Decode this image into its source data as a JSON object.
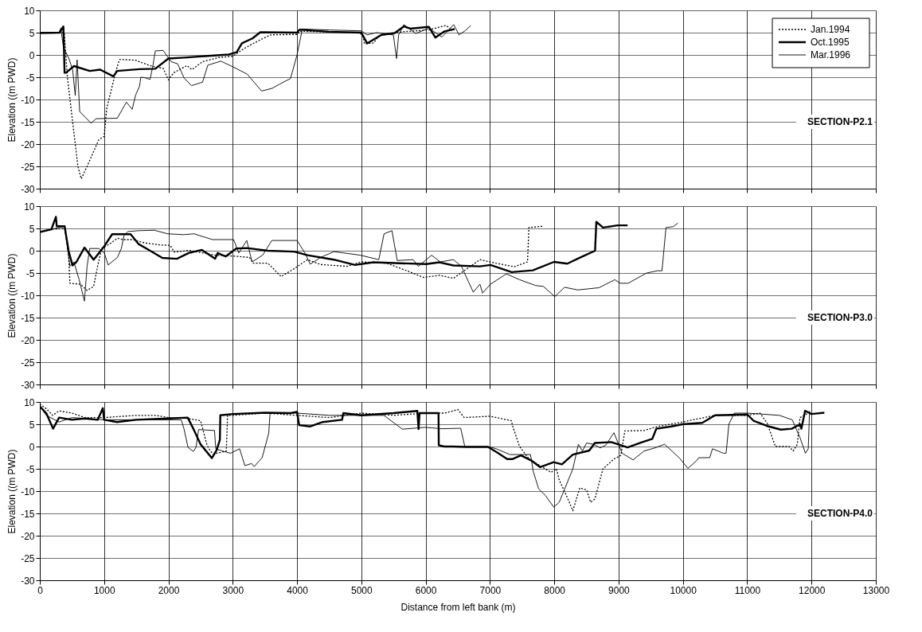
{
  "chart_data": [
    {
      "type": "line",
      "ylabel": "Elevation ((m PWD)",
      "xlim": [
        0,
        13000
      ],
      "ylim": [
        -30,
        10
      ],
      "xticks": [
        0,
        1000,
        2000,
        3000,
        4000,
        5000,
        6000,
        7000,
        8000,
        9000,
        10000,
        11000,
        12000,
        13000
      ],
      "yticks": [
        -30,
        -25,
        -20,
        -15,
        -10,
        -5,
        0,
        5,
        10
      ],
      "grid": true,
      "legend": "top right",
      "tick_labels": "y",
      "annotations": [
        "SECTION-P2.1"
      ],
      "series": [
        {
          "name": "Jan.1994",
          "color": "#000000",
          "line_style": "dotted",
          "x": [
            0,
            300,
            380,
            429,
            510,
            592,
            645,
            735,
            918,
            1000,
            1041,
            1143,
            1216,
            1245,
            1490,
            1694,
            1796,
            1918,
            2000,
            2082,
            2286,
            2367,
            2531,
            2776,
            3000,
            3184,
            3429,
            3592,
            4000,
            4041,
            4980,
            5029,
            5049,
            5192,
            5273,
            5641,
            6049,
            6314,
            6376
          ],
          "values": [
            5,
            5,
            5,
            -5,
            -15,
            -25,
            -27.8,
            -25,
            -19,
            -18.3,
            -12,
            -6,
            -2,
            -1,
            -1.2,
            -2.3,
            -2.7,
            -3,
            -5.6,
            -4,
            -2.4,
            -3.3,
            -1.5,
            -0.6,
            -0.3,
            1.5,
            3.4,
            4.5,
            4.6,
            5.3,
            5,
            4,
            2.5,
            2.7,
            4.3,
            5.2,
            5.6,
            6.6,
            6
          ]
        },
        {
          "name": "Oct.1995",
          "color": "#000000",
          "line_style": "solid",
          "x": [
            0,
            306,
            367,
            385,
            408,
            531,
            776,
            939,
            1143,
            1204,
            1551,
            1796,
            2000,
            2245,
            2939,
            3061,
            3143,
            3306,
            3429,
            4000,
            4041,
            4490,
            5000,
            5090,
            5314,
            5518,
            5661,
            5763,
            6049,
            6151,
            6294,
            6450
          ],
          "values": [
            4.9,
            5,
            6.4,
            -4,
            -4,
            -2.5,
            -3.6,
            -3.3,
            -4.8,
            -3.6,
            -3.2,
            -3.1,
            -0.8,
            -0.6,
            0.1,
            0.6,
            2.6,
            3.7,
            5.1,
            5,
            5.7,
            5.2,
            5,
            2.6,
            4.5,
            4.9,
            6.4,
            5.9,
            6.3,
            3.9,
            5.3,
            5.8
          ]
        },
        {
          "name": "Mar.1996",
          "color": "#000000",
          "line_style": "solid",
          "x": [
            0,
            300,
            327,
            367,
            449,
            510,
            551,
            580,
            620,
            796,
            878,
            1204,
            1347,
            1437,
            1490,
            1551,
            1571,
            1633,
            1714,
            1755,
            1796,
            1918,
            2041,
            2143,
            2245,
            2359,
            2531,
            2612,
            2816,
            3020,
            3224,
            3449,
            3612,
            3735,
            3898,
            4000,
            4082,
            4500,
            5000,
            5090,
            5233,
            5498,
            5547,
            5580,
            5661,
            5845,
            6049,
            6253,
            6437,
            6518,
            6620,
            6702
          ],
          "values": [
            5,
            5,
            6,
            1.7,
            -0.7,
            -3.3,
            -9.1,
            -1.1,
            -12.7,
            -15.3,
            -14.3,
            -14.2,
            -10.6,
            -12.2,
            -9,
            -7,
            -5,
            -5.1,
            -5.5,
            -2.7,
            0.9,
            1,
            -1.5,
            -2,
            -5.2,
            -6.9,
            -6.1,
            -2.3,
            -1.4,
            -2.8,
            -4.3,
            -8.1,
            -7.5,
            -6.5,
            -5.3,
            0,
            5.8,
            5.6,
            5.4,
            4.5,
            5,
            4.5,
            -0.8,
            4.5,
            6.8,
            4.8,
            6,
            4,
            6.8,
            4.5,
            5.5,
            6.6
          ]
        }
      ]
    },
    {
      "type": "line",
      "ylabel": "Elevation ((m PWD)",
      "xlim": [
        0,
        13000
      ],
      "ylim": [
        -30,
        10
      ],
      "xticks": [
        0,
        1000,
        2000,
        3000,
        4000,
        5000,
        6000,
        7000,
        8000,
        9000,
        10000,
        11000,
        12000,
        13000
      ],
      "yticks": [
        -30,
        -25,
        -20,
        -15,
        -10,
        -5,
        0,
        5,
        10
      ],
      "grid": true,
      "tick_labels": "y",
      "annotations": [
        "SECTION-P3.0"
      ],
      "series": [
        {
          "color": "#000000",
          "line_style": "dotted",
          "x": [
            0,
            180,
            386,
            447,
            468,
            632,
            735,
            837,
            899,
            961,
            1084,
            1207,
            1289,
            1450,
            1617,
            1864,
            2028,
            2090,
            2315,
            2726,
            3013,
            3259,
            3321,
            3547,
            3752,
            3957,
            4163,
            4368,
            4778,
            5000,
            5394,
            5764,
            5968,
            6215,
            6432,
            6597,
            6844,
            7091,
            7379,
            7584,
            7605,
            7831
          ],
          "values": [
            4.2,
            4.8,
            5,
            -0.5,
            -7.3,
            -7.5,
            -8.9,
            -8,
            -3.5,
            0.5,
            1.5,
            2.8,
            2.5,
            2.5,
            1.8,
            1.3,
            1.2,
            -0.3,
            0.1,
            -1,
            -1.2,
            -1.5,
            -2.8,
            -2.8,
            -5.8,
            -4,
            -2,
            -3.1,
            -3.5,
            -2.5,
            -2.8,
            -4.8,
            -6,
            -5.5,
            -6.2,
            -4.5,
            -2,
            -2.8,
            -3.6,
            -2.5,
            5.2,
            5.5
          ]
        },
        {
          "color": "#000000",
          "line_style": "solid",
          "x": [
            0,
            180,
            250,
            263,
            386,
            447,
            509,
            570,
            694,
            837,
            1002,
            1125,
            1412,
            1535,
            1658,
            1905,
            2131,
            2315,
            2520,
            2726,
            2767,
            2890,
            3054,
            3218,
            3547,
            3957,
            4163,
            4573,
            4901,
            5189,
            5599,
            6010,
            6215,
            6432,
            6844,
            7008,
            7337,
            7667,
            7996,
            8202,
            8407,
            8634,
            8654,
            8757,
            8984,
            9140
          ],
          "values": [
            4.2,
            4.8,
            7.6,
            5.5,
            5.5,
            0,
            -3.3,
            -2.5,
            0.7,
            -2,
            1,
            3.7,
            3.7,
            1.5,
            0.5,
            -1.6,
            -1.8,
            -0.5,
            0.2,
            -1.8,
            -0.5,
            -1.3,
            0.5,
            0.6,
            0,
            -0.2,
            -1,
            -2,
            -3.2,
            -2.6,
            -2.8,
            -3,
            -2.6,
            -3.3,
            -3.5,
            -3.2,
            -4.8,
            -4.4,
            -2.5,
            -2.9,
            -1.5,
            0,
            6.5,
            5.2,
            5.7,
            5.7
          ]
        },
        {
          "color": "#000000",
          "line_style": "solid",
          "x": [
            0,
            180,
            386,
            468,
            530,
            612,
            694,
            735,
            776,
            920,
            1002,
            1063,
            1207,
            1268,
            1310,
            1371,
            1535,
            1782,
            1987,
            2233,
            2397,
            2685,
            3013,
            3095,
            3218,
            3300,
            3465,
            3608,
            4000,
            4122,
            4204,
            4368,
            4573,
            4984,
            5271,
            5353,
            5476,
            5558,
            5805,
            5887,
            6092,
            6226,
            6432,
            6556,
            6741,
            6844,
            6885,
            7008,
            7255,
            7461,
            7708,
            7831,
            8008,
            8160,
            8366,
            8695,
            8942,
            9025,
            9148,
            9436,
            9601,
            9675,
            9737,
            9848,
            9922
          ],
          "values": [
            4.2,
            4.8,
            5.5,
            -3.5,
            -2.5,
            -6.5,
            -11.3,
            -3.5,
            0.5,
            0.5,
            -0.5,
            -3.2,
            -1.5,
            0.5,
            3.5,
            4.3,
            4.5,
            4.6,
            3.8,
            3.6,
            3.8,
            2.5,
            2.5,
            -0.5,
            2.3,
            -2.5,
            -1,
            2.3,
            2.3,
            -0.5,
            -3,
            -1.5,
            -0.2,
            -1,
            -2,
            3.8,
            4.5,
            -2.2,
            -2,
            -3.5,
            -1,
            -2.5,
            -2,
            -3.5,
            -9.3,
            -7.5,
            -9.5,
            -7.5,
            -5.2,
            -6.5,
            -7.8,
            -8,
            -10.3,
            -8.2,
            -8.8,
            -8.3,
            -6.5,
            -7.3,
            -7.3,
            -5,
            -4.5,
            -4.5,
            5.2,
            5.4,
            6.2
          ]
        }
      ]
    },
    {
      "type": "line",
      "ylabel": "Elevation ((m PWD)",
      "xlabel": "Distance from left bank (m)",
      "xlim": [
        0,
        13000
      ],
      "ylim": [
        -30,
        10
      ],
      "xticks": [
        0,
        1000,
        2000,
        3000,
        4000,
        5000,
        6000,
        7000,
        8000,
        9000,
        10000,
        11000,
        12000,
        13000
      ],
      "yticks": [
        -30,
        -25,
        -20,
        -15,
        -10,
        -5,
        0,
        5,
        10
      ],
      "grid": true,
      "annotations": [
        "SECTION-P4.0"
      ],
      "series": [
        {
          "color": "#000000",
          "line_style": "dotted",
          "x": [
            0,
            100,
            200,
            300,
            500,
            700,
            1000,
            1500,
            1800,
            2000,
            2300,
            2500,
            2600,
            2650,
            2700,
            2900,
            2920,
            3000,
            3500,
            4000,
            4500,
            5000,
            5500,
            6000,
            6300,
            6500,
            6600,
            7000,
            7332,
            7353,
            7460,
            7609,
            7779,
            7949,
            8034,
            8077,
            8204,
            8289,
            8396,
            8502,
            8566,
            8630,
            8757,
            8928,
            9034,
            9098,
            9396,
            9609,
            9991,
            10500,
            11000,
            11200,
            11311,
            11438,
            11651,
            11715,
            11779,
            11821,
            11950
          ],
          "values": [
            9.5,
            8.5,
            7,
            8,
            7.5,
            6.5,
            6.5,
            7,
            7,
            6.5,
            6.3,
            5.8,
            0.3,
            -1,
            -1.7,
            -1,
            7,
            7,
            7.5,
            7,
            6.5,
            7.5,
            7,
            7.5,
            7.5,
            8.3,
            6.5,
            6.8,
            5.8,
            4.6,
            0,
            -2.8,
            -4.3,
            -5.8,
            -5,
            -7.5,
            -11.5,
            -14.4,
            -9.3,
            -9.7,
            -12.5,
            -11.8,
            -5,
            -2.8,
            -2,
            3.5,
            3.6,
            4.5,
            5.5,
            7,
            7,
            7.5,
            5.2,
            0,
            0,
            -1,
            0.5,
            6.5,
            7.5
          ]
        },
        {
          "color": "#000000",
          "line_style": "solid",
          "x": [
            0,
            100,
            206,
            300,
            500,
            700,
            900,
            980,
            1000,
            1200,
            1500,
            2000,
            2300,
            2387,
            2500,
            2675,
            2750,
            2800,
            2807,
            3000,
            3500,
            3900,
            4000,
            4033,
            4200,
            4400,
            4700,
            4720,
            5000,
            5500,
            5870,
            5890,
            5905,
            6200,
            6204,
            6289,
            6417,
            6630,
            6970,
            7098,
            7268,
            7353,
            7481,
            7651,
            7779,
            7991,
            8119,
            8289,
            8545,
            8630,
            8885,
            9140,
            9353,
            9523,
            9587,
            9821,
            9991,
            10300,
            10500,
            11000,
            11098,
            11311,
            11523,
            11694,
            11821,
            11843,
            11900,
            12000,
            12200
          ],
          "values": [
            9,
            7.5,
            4,
            6.5,
            6,
            6.3,
            6,
            8.6,
            6,
            5.5,
            6,
            6.3,
            6.5,
            4,
            0.5,
            -2.6,
            -0.8,
            1.5,
            7,
            7.3,
            7.6,
            7.5,
            7.8,
            4.8,
            4.5,
            5.5,
            6,
            7.5,
            7,
            7.5,
            8,
            3.9,
            7.5,
            7.5,
            0.3,
            0,
            0,
            -0.1,
            -0.1,
            -1.2,
            -2.8,
            -2.8,
            -2,
            -3.2,
            -4.6,
            -3.5,
            -4,
            -1.8,
            -0.9,
            0.8,
            1,
            -0.2,
            0.9,
            1.7,
            4,
            4.5,
            5,
            5.3,
            7,
            7.2,
            5.8,
            4.6,
            3.8,
            4,
            5,
            4,
            8,
            7.3,
            7.6
          ]
        },
        {
          "color": "#000000",
          "line_style": "solid",
          "x": [
            0,
            100,
            300,
            500,
            1000,
            2000,
            2200,
            2243,
            2305,
            2387,
            2428,
            2469,
            2716,
            2737,
            2840,
            2963,
            3107,
            3189,
            3292,
            3333,
            3457,
            3560,
            3580,
            4000,
            4500,
            5000,
            5350,
            5638,
            5991,
            6255,
            6545,
            6609,
            6970,
            7098,
            7311,
            7630,
            7672,
            7757,
            7864,
            7991,
            8077,
            8162,
            8289,
            8375,
            8438,
            8502,
            8609,
            8715,
            8800,
            8928,
            9055,
            9225,
            9396,
            9566,
            9715,
            9949,
            10077,
            10204,
            10247,
            10417,
            10460,
            10630,
            10672,
            10715,
            10800,
            11000,
            11500,
            11700,
            11821,
            11906,
            11949,
            11970
          ],
          "values": [
            9,
            7,
            5.5,
            6.5,
            6,
            6,
            6,
            3.9,
            -0.2,
            -1.1,
            -0.2,
            3.8,
            3.6,
            -0.5,
            -1,
            -1.5,
            -0.5,
            -4.3,
            -3.8,
            -4.5,
            -2.5,
            3,
            7.5,
            7.5,
            7,
            7,
            7,
            3.9,
            4.3,
            4,
            4.1,
            0,
            0,
            -0.5,
            -1.8,
            -1.8,
            -5.5,
            -9.5,
            -11,
            -13.6,
            -12.5,
            -9.5,
            -5,
            0.5,
            -1,
            0.8,
            0.5,
            -0.3,
            0.3,
            3.1,
            -1.5,
            -3,
            -1,
            -0.3,
            0.5,
            -2.6,
            -4.9,
            -3.3,
            -2.5,
            -2.5,
            -0.5,
            -1.5,
            -1.5,
            5,
            7.5,
            7.5,
            7,
            6,
            2,
            -1.5,
            -0.5,
            8
          ]
        }
      ]
    }
  ]
}
